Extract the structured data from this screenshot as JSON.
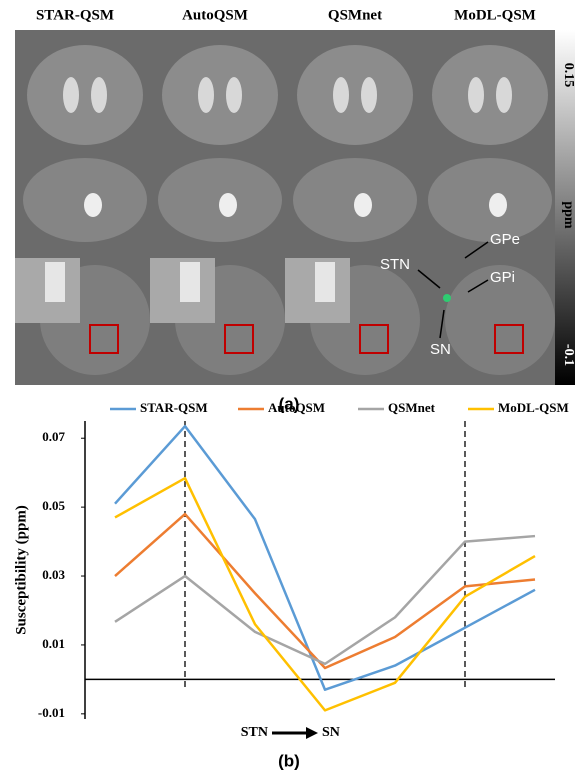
{
  "figure_a": {
    "label": "(a)",
    "columns": [
      "STAR-QSM",
      "AutoQSM",
      "QSMnet",
      "MoDL-QSM"
    ],
    "colorbar": {
      "max": "0.15",
      "unit": "ppm",
      "min": "-0.1"
    },
    "annotations": {
      "gpe": "GPe",
      "stn": "STN",
      "gpi": "GPi",
      "sn": "SN"
    }
  },
  "chart_data": {
    "type": "line",
    "panel_label": "(b)",
    "y_label": "Susceptibility (ppm)",
    "x_label": {
      "from": "STN",
      "to": "SN"
    },
    "categories": [
      null,
      null,
      null,
      null,
      null,
      null,
      null
    ],
    "series": [
      {
        "name": "STAR-QSM",
        "color": "#5b9bd5",
        "values": [
          0.051,
          0.0735,
          0.0465,
          -0.003,
          0.004,
          0.015,
          0.026
        ]
      },
      {
        "name": "AutoQSM",
        "color": "#ed7d31",
        "values": [
          0.03,
          0.048,
          0.025,
          0.0033,
          0.0123,
          0.027,
          0.029
        ]
      },
      {
        "name": "QSMnet",
        "color": "#a5a5a5",
        "values": [
          0.0167,
          0.03,
          0.0138,
          0.0045,
          0.018,
          0.04,
          0.0416
        ]
      },
      {
        "name": "MoDL-QSM",
        "color": "#ffc000",
        "values": [
          0.047,
          0.0584,
          0.016,
          -0.009,
          -0.001,
          0.024,
          0.0358
        ]
      }
    ],
    "ylim": [
      -0.0115,
      0.075
    ],
    "yticks": [
      0.07,
      0.05,
      0.03,
      0.01,
      -0.01
    ],
    "vlines": [
      1,
      5
    ],
    "legend": "top"
  }
}
